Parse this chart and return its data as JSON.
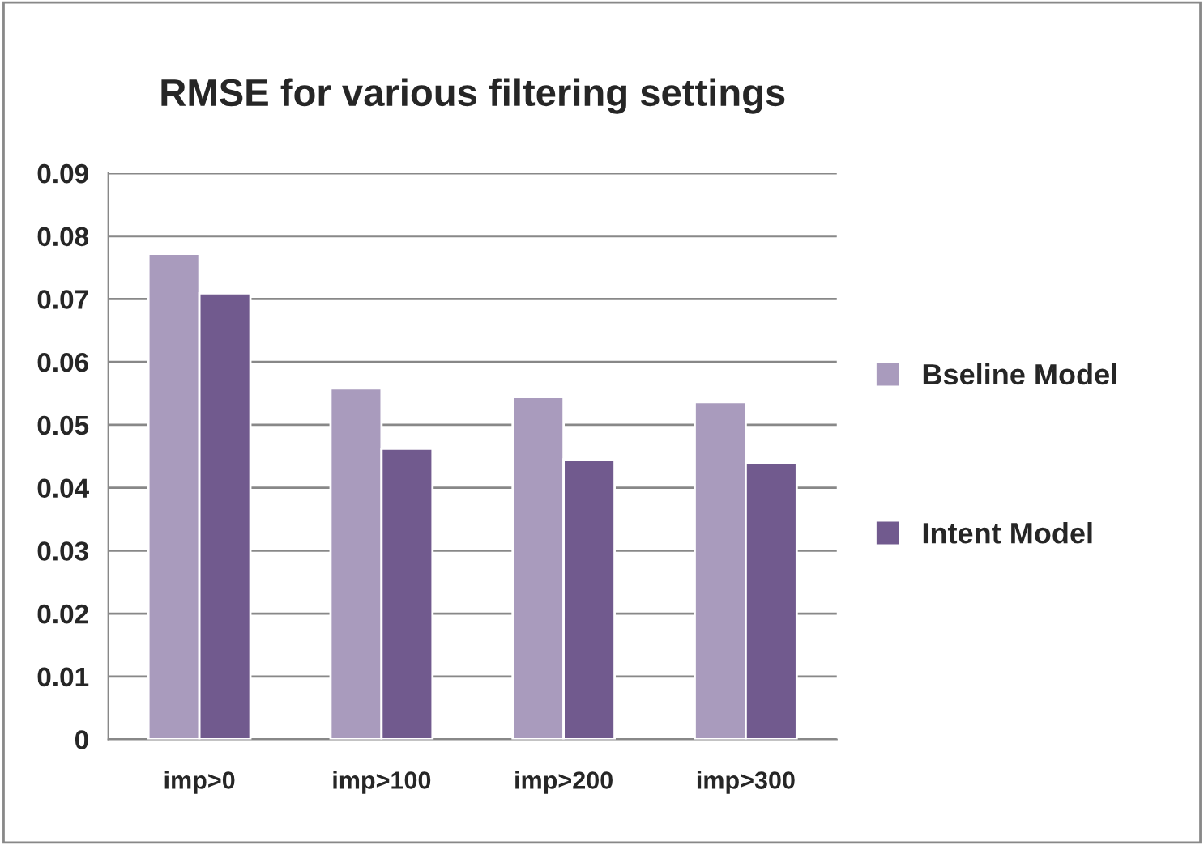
{
  "chart_data": {
    "type": "bar",
    "title": "RMSE for various filtering settings",
    "categories": [
      "imp>0",
      "imp>100",
      "imp>200",
      "imp>300"
    ],
    "series": [
      {
        "name": "Bseline Model",
        "color": "#a99bbd",
        "values": [
          0.0772,
          0.0558,
          0.0544,
          0.0536
        ]
      },
      {
        "name": "Intent Model",
        "color": "#715a8e",
        "values": [
          0.0709,
          0.0462,
          0.0445,
          0.044
        ]
      }
    ],
    "ylim": [
      0,
      0.09
    ],
    "yticks": [
      0,
      0.01,
      0.02,
      0.03,
      0.04,
      0.05,
      0.06,
      0.07,
      0.08,
      0.09
    ],
    "grid": "y",
    "legend": "right"
  }
}
